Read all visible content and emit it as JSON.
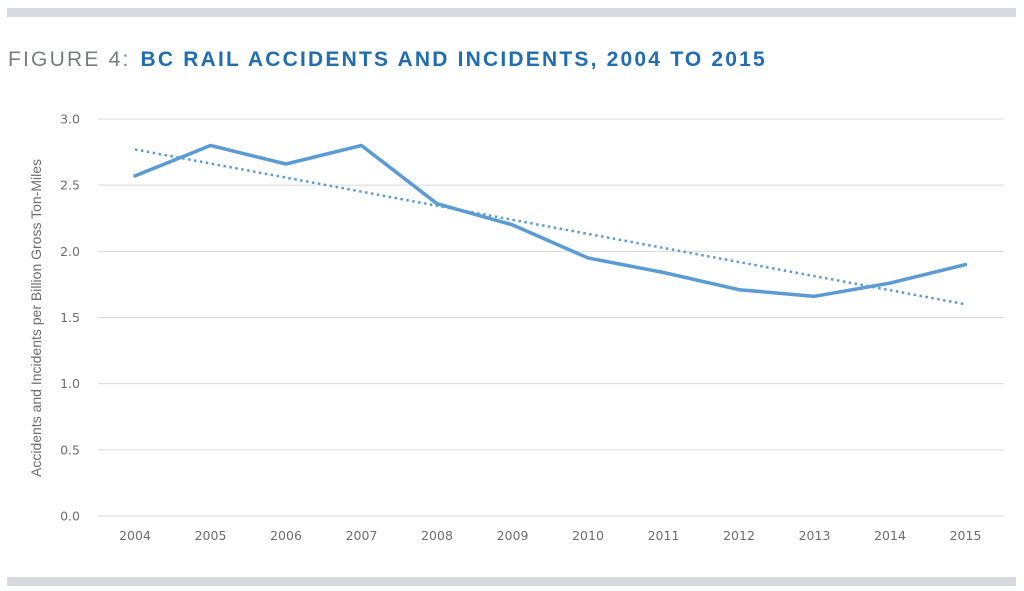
{
  "figure": {
    "prefix": "FIGURE 4:",
    "title": "BC RAIL ACCIDENTS AND INCIDENTS, 2004 TO 2015"
  },
  "colors": {
    "title_blue": "#1f6db3",
    "prefix_gray": "#7a7d80",
    "line": "#5b9bd5",
    "trend": "#5b9bd5",
    "grid": "#d9d9d9",
    "band": "#d7dbe0"
  },
  "chart_data": {
    "type": "line",
    "title": "BC Rail Accidents and Incidents, 2004 to 2015",
    "xlabel": "",
    "ylabel": "Accidents and Incidents per Billion Gross Ton-Miles",
    "categories": [
      "2004",
      "2005",
      "2006",
      "2007",
      "2008",
      "2009",
      "2010",
      "2011",
      "2012",
      "2013",
      "2014",
      "2015"
    ],
    "yticks": [
      "0.0",
      "0.5",
      "1.0",
      "1.5",
      "2.0",
      "2.5",
      "3.0"
    ],
    "ylim": [
      0,
      3.0
    ],
    "grid": true,
    "legend": "none",
    "series": [
      {
        "name": "Accidents and Incidents per Billion Gross Ton-Miles",
        "style": "solid",
        "values": [
          2.57,
          2.8,
          2.66,
          2.8,
          2.36,
          2.2,
          1.95,
          1.84,
          1.71,
          1.66,
          1.76,
          1.9
        ]
      },
      {
        "name": "Linear trend",
        "style": "dotted",
        "values": [
          2.77,
          1.6
        ],
        "span": [
          "2004",
          "2015"
        ]
      }
    ]
  }
}
